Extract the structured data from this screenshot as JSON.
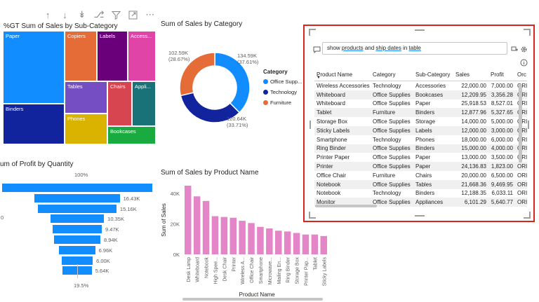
{
  "toolbar": {
    "icons": [
      "arrow-up-icon",
      "arrow-down-icon",
      "double-arrow-down-icon",
      "expand-hierarchy-icon",
      "filter-icon",
      "focus-mode-icon",
      "more-options-icon"
    ]
  },
  "treemap": {
    "title": "%GT Sum of Sales by Sub-Category",
    "tiles": [
      {
        "label": "Paper",
        "color": "#118DFF"
      },
      {
        "label": "Binders",
        "color": "#12239E"
      },
      {
        "label": "Copiers",
        "color": "#E66C37"
      },
      {
        "label": "Labels",
        "color": "#6B007B"
      },
      {
        "label": "Access...",
        "color": "#E044A7"
      },
      {
        "label": "Tables",
        "color": "#744EC2"
      },
      {
        "label": "Phones",
        "color": "#D9B300"
      },
      {
        "label": "Appli...",
        "color": "#197278"
      },
      {
        "label": "Chairs",
        "color": "#D64550"
      },
      {
        "label": "Bookcases",
        "color": "#1AAB40"
      }
    ]
  },
  "donut": {
    "title": "Sum of Sales by Category",
    "legend_title": "Category",
    "slices": [
      {
        "name": "Office Supp...",
        "value": 134.59,
        "value_label": "134.59K",
        "pct_label": "(37.61%)",
        "color": "#118DFF"
      },
      {
        "name": "Technology",
        "value": 120.64,
        "value_label": "120.64K",
        "pct_label": "(33.71%)",
        "color": "#12239E"
      },
      {
        "name": "Furniture",
        "value": 102.59,
        "value_label": "102.59K",
        "pct_label": "(28.67%)",
        "color": "#E66C37"
      }
    ]
  },
  "funnel": {
    "title": "um of Profit by Quantity",
    "top_label": "100%",
    "bottom_label": "19.5%",
    "axis_fragment": "0",
    "values": [
      29,
      16.43,
      15.16,
      10.35,
      9.47,
      8.94,
      6.96,
      6.0,
      5.64
    ],
    "labels": [
      "",
      "16.43K",
      "15.16K",
      "10.35K",
      "9.47K",
      "8.94K",
      "6.96K",
      "6.00K",
      "5.64K"
    ]
  },
  "chart_data": {
    "type": "bar",
    "title": "Sum of Sales by Product Name",
    "xlabel": "Product Name",
    "ylabel": "Sum of Sales",
    "ylim": [
      0,
      45
    ],
    "y_ticks": [
      "40K",
      "20K",
      "0K"
    ],
    "categories": [
      "Desk Lamp",
      "Whiteboard",
      "Notebook",
      "High Spee...",
      "Desk Chair",
      "Printer",
      "Wireless A...",
      "Office Chair",
      "Smartphone",
      "Microwave...",
      "Mailing En...",
      "Ring Binder",
      "Storage Box",
      "Printer Pap...",
      "Tablet",
      "Sticky Labels"
    ],
    "values": [
      45,
      38,
      35,
      25,
      24.5,
      24,
      22,
      20.5,
      18,
      17,
      15.5,
      15,
      14,
      13,
      13,
      12
    ],
    "color": "#E485C8"
  },
  "qna": {
    "question": {
      "w1": "show ",
      "w2": "products",
      "w3": " and ",
      "w4": "ship dates",
      "w5": " in ",
      "w6": "table"
    },
    "columns": [
      "Product Name",
      "Category",
      "Sub-Category",
      "Sales",
      "Profit",
      "Orc"
    ],
    "rows": [
      [
        "Wireless Accessories",
        "Technology",
        "Accessories",
        "22,000.00",
        "7,000.00",
        "ORI"
      ],
      [
        "Whiteboard",
        "Office Supplies",
        "Bookcases",
        "12,209.95",
        "3,356.28",
        "ORI"
      ],
      [
        "Whiteboard",
        "Office Supplies",
        "Paper",
        "25,918.53",
        "8,527.01",
        "ORI"
      ],
      [
        "Tablet",
        "Furniture",
        "Binders",
        "12,877.96",
        "5,327.65",
        "ORI"
      ],
      [
        "Storage Box",
        "Office Supplies",
        "Storage",
        "14,000.00",
        "5,000.00",
        "ORI"
      ],
      [
        "Sticky Labels",
        "Office Supplies",
        "Labels",
        "12,000.00",
        "3,000.00",
        "ORI"
      ],
      [
        "Smartphone",
        "Technology",
        "Phones",
        "18,000.00",
        "6,000.00",
        "ORI"
      ],
      [
        "Ring Binder",
        "Office Supplies",
        "Binders",
        "15,000.00",
        "4,000.00",
        "ORI"
      ],
      [
        "Printer Paper",
        "Office Supplies",
        "Paper",
        "13,000.00",
        "3,500.00",
        "ORI"
      ],
      [
        "Printer",
        "Office Supplies",
        "Paper",
        "24,136.83",
        "1,823.00",
        "ORI"
      ],
      [
        "Office Chair",
        "Furniture",
        "Chairs",
        "20,000.00",
        "6,500.00",
        "ORI"
      ],
      [
        "Notebook",
        "Office Supplies",
        "Tables",
        "21,668.36",
        "9,469.95",
        "ORI"
      ],
      [
        "Notebook",
        "Technology",
        "Binders",
        "12,188.35",
        "6,033.11",
        "ORI"
      ],
      [
        "Monitor",
        "Office Supplies",
        "Appliances",
        "6,101.29",
        "5,640.77",
        "ORI"
      ]
    ]
  }
}
